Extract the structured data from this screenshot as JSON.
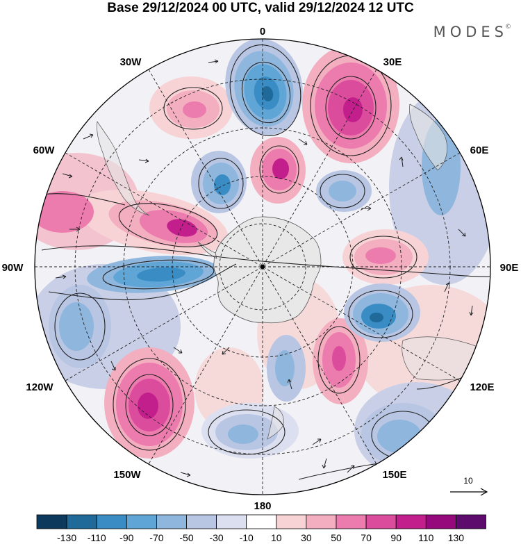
{
  "title": "Base 29/12/2024 00 UTC, valid 29/12/2024 12 UTC",
  "logo": "MODES",
  "longitude_labels": [
    {
      "id": "lon-0",
      "text": "0"
    },
    {
      "id": "lon-30e",
      "text": "30E"
    },
    {
      "id": "lon-60e",
      "text": "60E"
    },
    {
      "id": "lon-90e",
      "text": "90E"
    },
    {
      "id": "lon-120e",
      "text": "120E"
    },
    {
      "id": "lon-150e",
      "text": "150E"
    },
    {
      "id": "lon-180",
      "text": "180"
    },
    {
      "id": "lon-150w",
      "text": "150W"
    },
    {
      "id": "lon-120w",
      "text": "120W"
    },
    {
      "id": "lon-90w",
      "text": "90W"
    },
    {
      "id": "lon-60w",
      "text": "60W"
    },
    {
      "id": "lon-30w",
      "text": "30W"
    }
  ],
  "vector_reference": "10",
  "colorbar": {
    "colors": [
      "#0d3a5c",
      "#1f6a99",
      "#3a8cc4",
      "#5fa6d6",
      "#8fb6dd",
      "#b8c6e4",
      "#dcdff0",
      "#ffffff",
      "#f8d3d6",
      "#f3aec0",
      "#ec7cad",
      "#dc4c9d",
      "#c21f8c",
      "#95097d",
      "#5e0b6e"
    ],
    "ticks": [
      "-130",
      "-110",
      "-90",
      "-70",
      "-50",
      "-30",
      "-10",
      "10",
      "30",
      "50",
      "70",
      "90",
      "110",
      "130"
    ]
  }
}
